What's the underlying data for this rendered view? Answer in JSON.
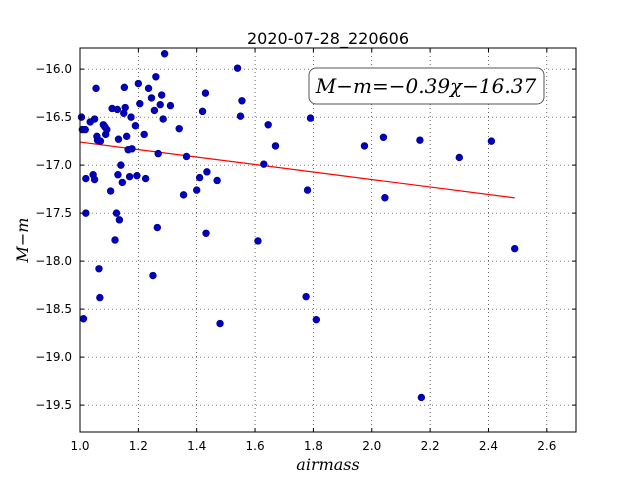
{
  "chart_data": {
    "type": "scatter",
    "title": "2020-07-28_220606",
    "xlabel": "airmass",
    "ylabel": "M−m",
    "xlim": [
      1.0,
      2.7
    ],
    "ylim": [
      -19.78,
      -15.78
    ],
    "y_inverted": false,
    "grid": true,
    "grid_style": "dotted",
    "xticks": [
      1.0,
      1.2,
      1.4,
      1.6,
      1.8,
      2.0,
      2.2,
      2.4,
      2.6
    ],
    "xtick_labels": [
      "1.0",
      "1.2",
      "1.4",
      "1.6",
      "1.8",
      "2.0",
      "2.2",
      "2.4",
      "2.6"
    ],
    "yticks": [
      -16.0,
      -16.5,
      -17.0,
      -17.5,
      -18.0,
      -18.5,
      -19.0,
      -19.5
    ],
    "ytick_labels": [
      "−16.0",
      "−16.5",
      "−17.0",
      "−17.5",
      "−18.0",
      "−18.5",
      "−19.0",
      "−19.5"
    ],
    "annotation": "M−m=−0.39χ−16.37",
    "marker_color": "#0000c0",
    "fit_color": "#ff0000",
    "fit": {
      "slope": -0.39,
      "intercept": -16.37,
      "x_range": [
        1.0,
        2.49
      ]
    },
    "points": [
      [
        1.005,
        -16.5
      ],
      [
        1.008,
        -16.63
      ],
      [
        1.012,
        -18.6
      ],
      [
        1.018,
        -16.63
      ],
      [
        1.02,
        -17.14
      ],
      [
        1.02,
        -17.5
      ],
      [
        1.035,
        -16.55
      ],
      [
        1.045,
        -17.1
      ],
      [
        1.05,
        -16.52
      ],
      [
        1.05,
        -17.15
      ],
      [
        1.055,
        -16.2
      ],
      [
        1.058,
        -16.7
      ],
      [
        1.06,
        -16.74
      ],
      [
        1.065,
        -18.08
      ],
      [
        1.068,
        -18.38
      ],
      [
        1.07,
        -16.75
      ],
      [
        1.08,
        -16.58
      ],
      [
        1.085,
        -16.6
      ],
      [
        1.088,
        -16.68
      ],
      [
        1.092,
        -16.63
      ],
      [
        1.105,
        -17.27
      ],
      [
        1.11,
        -16.41
      ],
      [
        1.12,
        -17.78
      ],
      [
        1.125,
        -17.5
      ],
      [
        1.128,
        -16.42
      ],
      [
        1.13,
        -17.1
      ],
      [
        1.132,
        -16.73
      ],
      [
        1.135,
        -17.57
      ],
      [
        1.14,
        -17.0
      ],
      [
        1.145,
        -17.18
      ],
      [
        1.15,
        -16.46
      ],
      [
        1.152,
        -16.19
      ],
      [
        1.155,
        -16.4
      ],
      [
        1.16,
        -16.7
      ],
      [
        1.165,
        -16.84
      ],
      [
        1.17,
        -17.12
      ],
      [
        1.175,
        -16.5
      ],
      [
        1.178,
        -16.83
      ],
      [
        1.19,
        -16.59
      ],
      [
        1.195,
        -17.11
      ],
      [
        1.2,
        -16.15
      ],
      [
        1.205,
        -16.36
      ],
      [
        1.22,
        -16.68
      ],
      [
        1.225,
        -17.14
      ],
      [
        1.235,
        -16.2
      ],
      [
        1.245,
        -16.3
      ],
      [
        1.25,
        -18.15
      ],
      [
        1.255,
        -16.43
      ],
      [
        1.26,
        -16.08
      ],
      [
        1.265,
        -17.65
      ],
      [
        1.268,
        -16.88
      ],
      [
        1.275,
        -16.37
      ],
      [
        1.28,
        -16.27
      ],
      [
        1.285,
        -16.52
      ],
      [
        1.29,
        -15.84
      ],
      [
        1.31,
        -16.38
      ],
      [
        1.34,
        -16.62
      ],
      [
        1.355,
        -17.31
      ],
      [
        1.365,
        -16.91
      ],
      [
        1.4,
        -17.26
      ],
      [
        1.41,
        -17.13
      ],
      [
        1.42,
        -16.44
      ],
      [
        1.43,
        -16.25
      ],
      [
        1.432,
        -17.71
      ],
      [
        1.435,
        -17.07
      ],
      [
        1.47,
        -17.16
      ],
      [
        1.48,
        -18.65
      ],
      [
        1.54,
        -15.99
      ],
      [
        1.55,
        -16.49
      ],
      [
        1.555,
        -16.33
      ],
      [
        1.61,
        -17.79
      ],
      [
        1.63,
        -16.99
      ],
      [
        1.645,
        -16.58
      ],
      [
        1.67,
        -16.8
      ],
      [
        1.775,
        -18.37
      ],
      [
        1.78,
        -17.26
      ],
      [
        1.79,
        -16.51
      ],
      [
        1.81,
        -18.61
      ],
      [
        1.975,
        -16.8
      ],
      [
        2.04,
        -16.71
      ],
      [
        2.045,
        -17.34
      ],
      [
        2.165,
        -16.74
      ],
      [
        2.17,
        -19.42
      ],
      [
        2.3,
        -16.92
      ],
      [
        2.41,
        -16.75
      ],
      [
        2.49,
        -17.87
      ]
    ]
  }
}
